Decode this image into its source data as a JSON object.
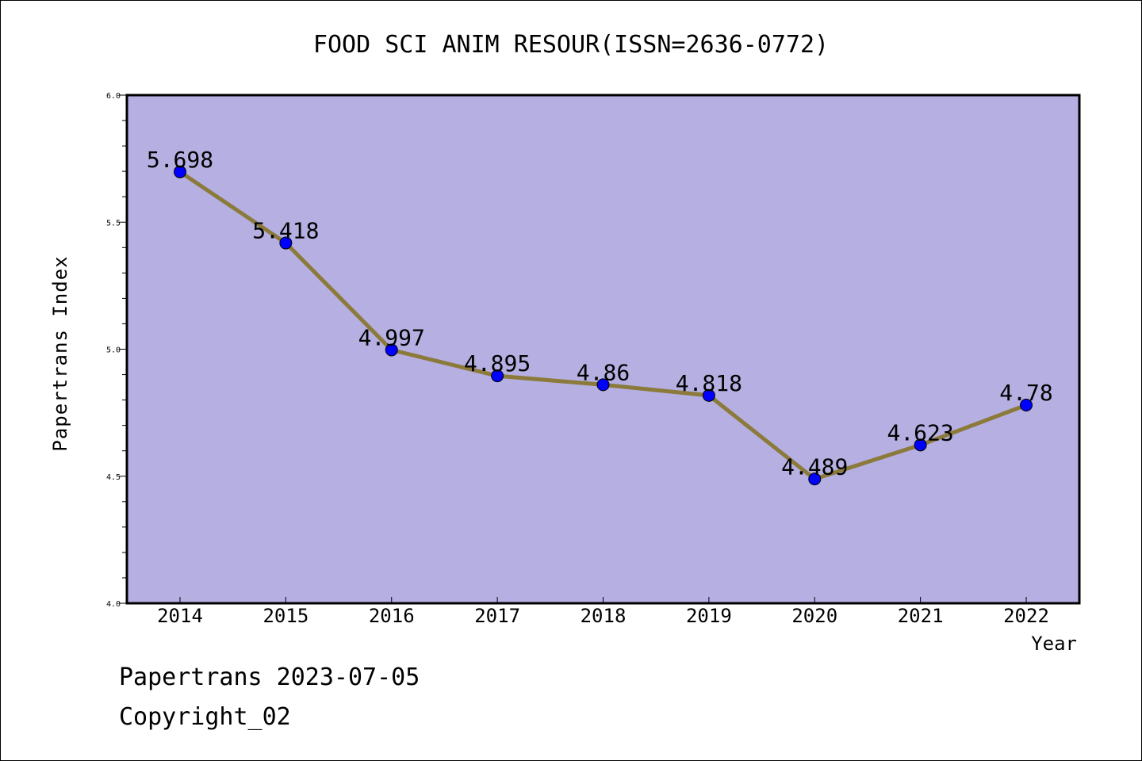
{
  "chart_data": {
    "type": "line",
    "title": "FOOD SCI ANIM RESOUR(ISSN=2636-0772)",
    "xlabel": "Year",
    "ylabel": "Papertrans Index",
    "x": [
      "2014",
      "2015",
      "2016",
      "2017",
      "2018",
      "2019",
      "2020",
      "2021",
      "2022"
    ],
    "values": [
      5.698,
      5.418,
      4.997,
      4.895,
      4.86,
      4.818,
      4.489,
      4.623,
      4.78
    ],
    "data_labels": [
      "5.698",
      "5.418",
      "4.997",
      "4.895",
      "4.86",
      "4.818",
      "4.489",
      "4.623",
      "4.78"
    ],
    "yticks": [
      "4.0",
      "4.5",
      "5.0",
      "5.5",
      "6.0"
    ],
    "ylim": [
      4.0,
      6.0
    ],
    "grid": false,
    "colors": {
      "plot_background": "#b5afe2",
      "line": "#8b7a3a",
      "marker": "#0000ff",
      "axis": "#000000"
    }
  },
  "footer": {
    "line1": "Papertrans 2023-07-05",
    "line2": "Copyright_02"
  }
}
